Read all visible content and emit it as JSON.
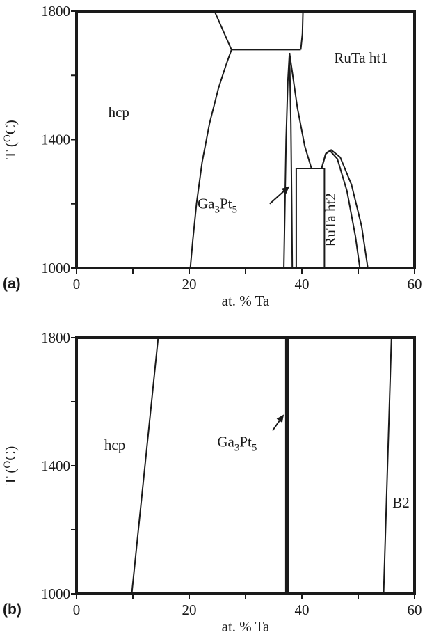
{
  "chart_data": [
    {
      "type": "line",
      "panel_label": "(a)",
      "xlabel": "at. % Ta",
      "ylabel_main": "T (",
      "ylabel_sup": "O",
      "ylabel_end": "C)",
      "xlim": [
        0,
        60
      ],
      "ylim": [
        1000,
        1800
      ],
      "x_ticks": [
        0,
        20,
        40,
        60
      ],
      "x_minor_ticks": [
        10,
        30,
        50
      ],
      "y_ticks": [
        1000,
        1400,
        1800
      ],
      "y_minor_ticks": [
        1200,
        1600
      ],
      "grid": false,
      "regions": [
        {
          "text": "hcp",
          "x": 7.5,
          "y": 1470
        },
        {
          "text": "RuTa ht1",
          "x": 50.5,
          "y": 1640
        }
      ],
      "phase_label": {
        "base": "Ga",
        "sub1": "3",
        "mid": "Pt",
        "sub2": "5",
        "x": 25.0,
        "y": 1185
      },
      "vertical_label": {
        "text": "RuTa ht2",
        "x": 45.9,
        "y": 1150
      },
      "arrow": {
        "from": [
          34.3,
          1200
        ],
        "to": [
          37.8,
          1255
        ]
      },
      "boundaries": [
        {
          "name": "hcp-solvus",
          "points": [
            [
              20.2,
              1000
            ],
            [
              20.6,
              1080
            ],
            [
              21.3,
              1200
            ],
            [
              22.3,
              1330
            ],
            [
              23.6,
              1450
            ],
            [
              25.2,
              1560
            ],
            [
              26.5,
              1630
            ],
            [
              27.5,
              1680
            ]
          ]
        },
        {
          "name": "left-upper-edge",
          "points": [
            [
              24.5,
              1800
            ],
            [
              27.5,
              1680
            ]
          ]
        },
        {
          "name": "right-upper-edge",
          "points": [
            [
              39.8,
              1680
            ],
            [
              40.1,
              1730
            ],
            [
              40.2,
              1800
            ]
          ]
        },
        {
          "name": "peritectic-line",
          "points": [
            [
              27.5,
              1680
            ],
            [
              39.8,
              1680
            ]
          ]
        },
        {
          "name": "ga3pt5-left",
          "points": [
            [
              36.8,
              1000
            ],
            [
              37.0,
              1200
            ],
            [
              37.2,
              1400
            ],
            [
              37.5,
              1580
            ],
            [
              37.8,
              1670
            ]
          ]
        },
        {
          "name": "ga3pt5-right",
          "points": [
            [
              38.3,
              1000
            ],
            [
              38.2,
              1200
            ],
            [
              38.05,
              1450
            ],
            [
              37.8,
              1670
            ]
          ]
        },
        {
          "name": "wide-lens",
          "points": [
            [
              37.8,
              1670
            ],
            [
              39.2,
              1500
            ],
            [
              40.5,
              1380
            ],
            [
              41.7,
              1310
            ],
            [
              43.5,
              1310
            ]
          ]
        },
        {
          "name": "vertical-39",
          "points": [
            [
              39.0,
              1000
            ],
            [
              39.0,
              1310
            ]
          ]
        },
        {
          "name": "ht2-plateau",
          "points": [
            [
              39.0,
              1310
            ],
            [
              44.0,
              1310
            ]
          ]
        },
        {
          "name": "ht2-left",
          "points": [
            [
              44.0,
              1000
            ],
            [
              44.0,
              1310
            ]
          ]
        },
        {
          "name": "dome-inner",
          "points": [
            [
              43.5,
              1310
            ],
            [
              44.2,
              1355
            ],
            [
              45.0,
              1365
            ],
            [
              46.3,
              1340
            ],
            [
              48.0,
              1240
            ],
            [
              49.5,
              1100
            ],
            [
              50.3,
              1000
            ]
          ]
        },
        {
          "name": "dome-outer",
          "points": [
            [
              43.5,
              1310
            ],
            [
              44.3,
              1358
            ],
            [
              45.2,
              1368
            ],
            [
              46.8,
              1345
            ],
            [
              48.8,
              1260
            ],
            [
              50.6,
              1130
            ],
            [
              51.7,
              1000
            ]
          ]
        }
      ]
    },
    {
      "type": "line",
      "panel_label": "(b)",
      "xlabel": "at. % Ta",
      "ylabel_main": "T (",
      "ylabel_sup": "O",
      "ylabel_end": "C)",
      "xlim": [
        0,
        60
      ],
      "ylim": [
        1000,
        1800
      ],
      "x_ticks": [
        0,
        20,
        40,
        60
      ],
      "x_minor_ticks": [
        10,
        30,
        50
      ],
      "y_ticks": [
        1000,
        1400,
        1800
      ],
      "y_minor_ticks": [
        1200,
        1600
      ],
      "grid": false,
      "regions": [
        {
          "text": "hcp",
          "x": 6.8,
          "y": 1450
        },
        {
          "text": "B2",
          "x": 57.6,
          "y": 1270
        }
      ],
      "phase_label": {
        "base": "Ga",
        "sub1": "3",
        "mid": "Pt",
        "sub2": "5",
        "x": 28.5,
        "y": 1460
      },
      "arrow": {
        "from": [
          34.8,
          1510
        ],
        "to": [
          36.8,
          1560
        ]
      },
      "boundaries": [
        {
          "name": "hcp-solvus",
          "points": [
            [
              9.8,
              1000
            ],
            [
              14.5,
              1800
            ]
          ]
        },
        {
          "name": "ga3pt5-line",
          "points": [
            [
              37.4,
              1000
            ],
            [
              37.4,
              1800
            ]
          ],
          "bold": true
        },
        {
          "name": "b2-solvus",
          "points": [
            [
              54.5,
              1000
            ],
            [
              55.9,
              1800
            ]
          ]
        }
      ]
    }
  ]
}
